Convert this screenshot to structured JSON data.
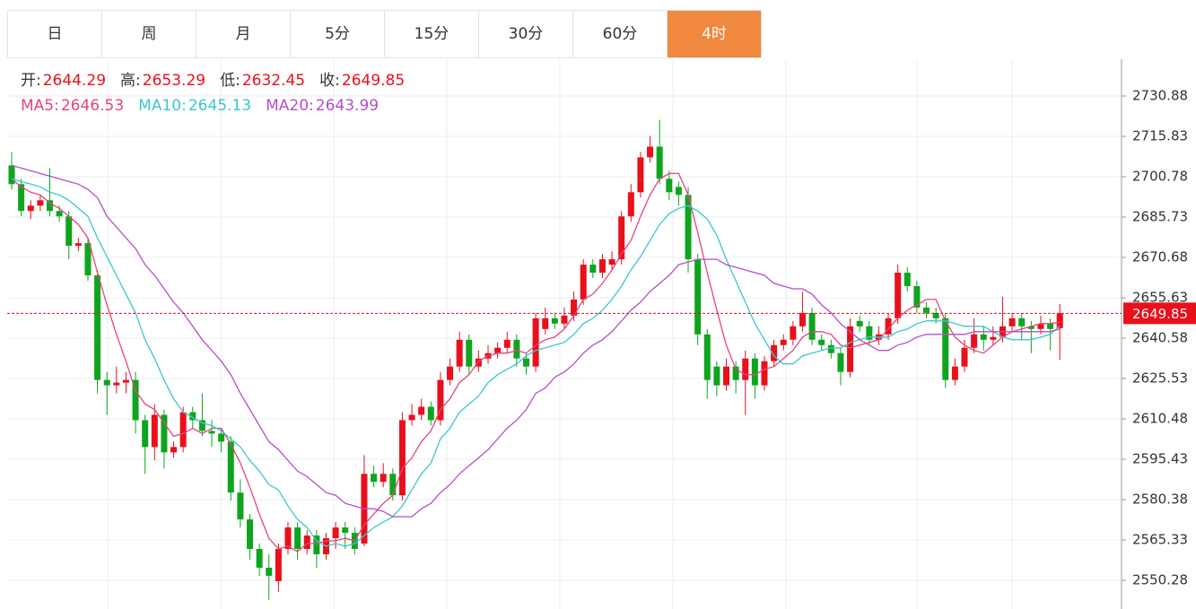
{
  "tabs": [
    "日",
    "周",
    "月",
    "5分",
    "15分",
    "30分",
    "60分",
    "4时"
  ],
  "active_tab": 7,
  "chart_data": {
    "type": "candlestick",
    "ohlc_labels": [
      "开:",
      "高:",
      "低:",
      "收:"
    ],
    "up_color": "#e8101b",
    "down_color": "#0ea51e",
    "ylim": [
      2539.6,
      2744.6
    ],
    "yticks": [
      2550.28,
      2565.33,
      2580.38,
      2595.43,
      2610.48,
      2625.53,
      2640.58,
      2655.63,
      2670.68,
      2685.73,
      2700.78,
      2715.83,
      2730.88
    ],
    "grid": true,
    "candles": [
      [
        2705,
        2710,
        2696,
        2698
      ],
      [
        2698,
        2700,
        2686,
        2688
      ],
      [
        2688,
        2692,
        2685,
        2690
      ],
      [
        2690,
        2694,
        2688,
        2692
      ],
      [
        2692,
        2704,
        2686,
        2688
      ],
      [
        2688,
        2690,
        2684,
        2686
      ],
      [
        2686,
        2688,
        2670,
        2675
      ],
      [
        2675,
        2678,
        2673,
        2676
      ],
      [
        2676,
        2678,
        2662,
        2664
      ],
      [
        2664,
        2666,
        2620,
        2625
      ],
      [
        2625,
        2628,
        2612,
        2623
      ],
      [
        2623,
        2630,
        2620,
        2624
      ],
      [
        2624,
        2628,
        2620,
        2625
      ],
      [
        2625,
        2628,
        2605,
        2610
      ],
      [
        2610,
        2612,
        2590,
        2600
      ],
      [
        2600,
        2616,
        2595,
        2612
      ],
      [
        2612,
        2614,
        2592,
        2598
      ],
      [
        2598,
        2602,
        2596,
        2600
      ],
      [
        2600,
        2615,
        2598,
        2613
      ],
      [
        2613,
        2615,
        2607,
        2610
      ],
      [
        2610,
        2620,
        2604,
        2606
      ],
      [
        2606,
        2610,
        2600,
        2605
      ],
      [
        2605,
        2607,
        2598,
        2602
      ],
      [
        2602,
        2604,
        2580,
        2583
      ],
      [
        2583,
        2588,
        2570,
        2573
      ],
      [
        2573,
        2575,
        2558,
        2562
      ],
      [
        2562,
        2564,
        2552,
        2555
      ],
      [
        2555,
        2560,
        2543,
        2552
      ],
      [
        2550,
        2564,
        2546,
        2562
      ],
      [
        2562,
        2572,
        2560,
        2570
      ],
      [
        2570,
        2572,
        2558,
        2562
      ],
      [
        2562,
        2569,
        2560,
        2567
      ],
      [
        2567,
        2569,
        2555,
        2560
      ],
      [
        2560,
        2568,
        2558,
        2566
      ],
      [
        2566,
        2572,
        2562,
        2570
      ],
      [
        2570,
        2572,
        2562,
        2568
      ],
      [
        2568,
        2570,
        2560,
        2562
      ],
      [
        2564,
        2597,
        2563,
        2590
      ],
      [
        2590,
        2593,
        2585,
        2587
      ],
      [
        2587,
        2594,
        2585,
        2590
      ],
      [
        2590,
        2592,
        2580,
        2582
      ],
      [
        2582,
        2613,
        2580,
        2610
      ],
      [
        2610,
        2616,
        2608,
        2612
      ],
      [
        2612,
        2618,
        2610,
        2615
      ],
      [
        2615,
        2617,
        2608,
        2610
      ],
      [
        2610,
        2628,
        2608,
        2625
      ],
      [
        2625,
        2633,
        2623,
        2630
      ],
      [
        2630,
        2643,
        2628,
        2640
      ],
      [
        2640,
        2642,
        2627,
        2630
      ],
      [
        2630,
        2636,
        2628,
        2633
      ],
      [
        2633,
        2638,
        2631,
        2635
      ],
      [
        2635,
        2639,
        2633,
        2637
      ],
      [
        2637,
        2643,
        2635,
        2640
      ],
      [
        2640,
        2642,
        2630,
        2633
      ],
      [
        2633,
        2635,
        2627,
        2630
      ],
      [
        2630,
        2650,
        2628,
        2648
      ],
      [
        2644,
        2652,
        2642,
        2648
      ],
      [
        2648,
        2650,
        2644,
        2646
      ],
      [
        2646,
        2652,
        2644,
        2649
      ],
      [
        2649,
        2658,
        2647,
        2655
      ],
      [
        2655,
        2670,
        2653,
        2668
      ],
      [
        2668,
        2670,
        2663,
        2665
      ],
      [
        2665,
        2672,
        2663,
        2670
      ],
      [
        2668,
        2673,
        2666,
        2670
      ],
      [
        2670,
        2688,
        2668,
        2686
      ],
      [
        2686,
        2698,
        2684,
        2695
      ],
      [
        2695,
        2710,
        2693,
        2708
      ],
      [
        2708,
        2716,
        2706,
        2712
      ],
      [
        2712,
        2722,
        2698,
        2700
      ],
      [
        2700,
        2703,
        2692,
        2695
      ],
      [
        2697,
        2699,
        2690,
        2694
      ],
      [
        2694,
        2697,
        2665,
        2670
      ],
      [
        2670,
        2672,
        2638,
        2642
      ],
      [
        2642,
        2644,
        2618,
        2625
      ],
      [
        2630,
        2632,
        2619,
        2623
      ],
      [
        2623,
        2633,
        2621,
        2630
      ],
      [
        2630,
        2632,
        2620,
        2625
      ],
      [
        2625,
        2636,
        2612,
        2633
      ],
      [
        2633,
        2635,
        2618,
        2623
      ],
      [
        2623,
        2634,
        2621,
        2632
      ],
      [
        2632,
        2640,
        2630,
        2638
      ],
      [
        2638,
        2642,
        2636,
        2640
      ],
      [
        2640,
        2647,
        2638,
        2645
      ],
      [
        2645,
        2658,
        2643,
        2650
      ],
      [
        2650,
        2652,
        2638,
        2640
      ],
      [
        2640,
        2642,
        2636,
        2638
      ],
      [
        2638,
        2640,
        2633,
        2635
      ],
      [
        2635,
        2637,
        2623,
        2628
      ],
      [
        2628,
        2648,
        2626,
        2645
      ],
      [
        2647,
        2649,
        2643,
        2645
      ],
      [
        2645,
        2647,
        2638,
        2640
      ],
      [
        2640,
        2645,
        2638,
        2642
      ],
      [
        2642,
        2650,
        2640,
        2648
      ],
      [
        2648,
        2668,
        2646,
        2665
      ],
      [
        2665,
        2667,
        2658,
        2660
      ],
      [
        2660,
        2662,
        2650,
        2652
      ],
      [
        2652,
        2654,
        2648,
        2650
      ],
      [
        2650,
        2652,
        2646,
        2648
      ],
      [
        2648,
        2650,
        2622,
        2625
      ],
      [
        2625,
        2633,
        2623,
        2630
      ],
      [
        2630,
        2640,
        2628,
        2637
      ],
      [
        2637,
        2648,
        2635,
        2642
      ],
      [
        2642,
        2645,
        2636,
        2640
      ],
      [
        2640,
        2645,
        2638,
        2641
      ],
      [
        2641,
        2656,
        2639,
        2645
      ],
      [
        2645,
        2650,
        2643,
        2648
      ],
      [
        2648,
        2650,
        2640,
        2645
      ],
      [
        2645,
        2647,
        2635,
        2644
      ],
      [
        2644,
        2649,
        2642,
        2646
      ],
      [
        2646,
        2648,
        2636,
        2644
      ],
      [
        2644.29,
        2653.29,
        2632.45,
        2649.85
      ]
    ],
    "series": [
      {
        "name": "MA5:",
        "color": "#e8437a",
        "values": [
          2700,
          2697,
          2695,
          2694,
          2691,
          2689,
          2686,
          2683,
          2678,
          2665,
          2653,
          2642,
          2632,
          2621,
          2616,
          2614,
          2609,
          2604,
          2605,
          2607,
          2605,
          2607,
          2607,
          2601,
          2594,
          2585,
          2575,
          2566,
          2562,
          2563,
          2561,
          2564,
          2564,
          2565,
          2565,
          2566,
          2565,
          2571,
          2575,
          2579,
          2582,
          2592,
          2596,
          2602,
          2606,
          2614,
          2618,
          2624,
          2627,
          2632,
          2634,
          2635,
          2635,
          2636,
          2635,
          2638,
          2640,
          2641,
          2644,
          2649,
          2655,
          2657,
          2661,
          2666,
          2672,
          2677,
          2686,
          2694,
          2700,
          2702,
          2702,
          2694,
          2680,
          2665,
          2651,
          2638,
          2629,
          2627,
          2627,
          2629,
          2630,
          2633,
          2636,
          2641,
          2643,
          2643,
          2642,
          2638,
          2637,
          2638,
          2639,
          2640,
          2644,
          2648,
          2651,
          2653,
          2655,
          2655,
          2647,
          2641,
          2638,
          2636,
          2635,
          2638,
          2641,
          2643,
          2644,
          2645,
          2646,
          2646,
          2646.53
        ]
      },
      {
        "name": "MA10:",
        "color": "#3cc6d0",
        "values": [
          2700,
          2699,
          2698,
          2697,
          2695,
          2694,
          2692,
          2689,
          2686,
          2678,
          2671,
          2664,
          2657,
          2650,
          2640,
          2633,
          2625,
          2618,
          2613,
          2611,
          2609,
          2608,
          2606,
          2603,
          2600,
          2595,
          2591,
          2586,
          2584,
          2578,
          2573,
          2570,
          2565,
          2563,
          2564,
          2563,
          2564,
          2567,
          2570,
          2572,
          2574,
          2578,
          2584,
          2590,
          2594,
          2603,
          2607,
          2613,
          2616,
          2619,
          2624,
          2627,
          2629,
          2631,
          2634,
          2636,
          2637,
          2638,
          2639,
          2642,
          2646,
          2648,
          2651,
          2655,
          2660,
          2666,
          2671,
          2677,
          2683,
          2687,
          2689,
          2690,
          2688,
          2685,
          2679,
          2670,
          2662,
          2654,
          2646,
          2640,
          2634,
          2631,
          2631,
          2634,
          2635,
          2636,
          2637,
          2637,
          2639,
          2640,
          2641,
          2641,
          2641,
          2643,
          2644,
          2646,
          2647,
          2647,
          2647,
          2646,
          2645,
          2645,
          2645,
          2643,
          2641,
          2640,
          2640,
          2640,
          2641,
          2642,
          2645.13
        ]
      },
      {
        "name": "MA20:",
        "color": "#b44fc8",
        "values": [
          2705,
          2704,
          2703,
          2702,
          2701,
          2700,
          2699,
          2698,
          2696,
          2693,
          2686,
          2682,
          2678,
          2674,
          2668,
          2664,
          2659,
          2654,
          2650,
          2645,
          2640,
          2636,
          2632,
          2627,
          2620,
          2614,
          2608,
          2602,
          2599,
          2595,
          2591,
          2589,
          2586,
          2583,
          2582,
          2579,
          2578,
          2577,
          2577,
          2576,
          2574,
          2574,
          2574,
          2577,
          2579,
          2583,
          2586,
          2590,
          2593,
          2596,
          2599,
          2603,
          2607,
          2610,
          2614,
          2620,
          2622,
          2626,
          2628,
          2631,
          2635,
          2638,
          2640,
          2643,
          2647,
          2651,
          2654,
          2658,
          2661,
          2664,
          2668,
          2669,
          2670,
          2670,
          2670,
          2668,
          2667,
          2666,
          2665,
          2664,
          2661,
          2660,
          2659,
          2659,
          2657,
          2653,
          2650,
          2646,
          2643,
          2640,
          2638,
          2636,
          2636,
          2638,
          2639,
          2641,
          2642,
          2642,
          2642,
          2642,
          2642,
          2643,
          2643,
          2643,
          2643,
          2643,
          2643,
          2643,
          2643,
          2643,
          2643.99
        ]
      }
    ]
  }
}
